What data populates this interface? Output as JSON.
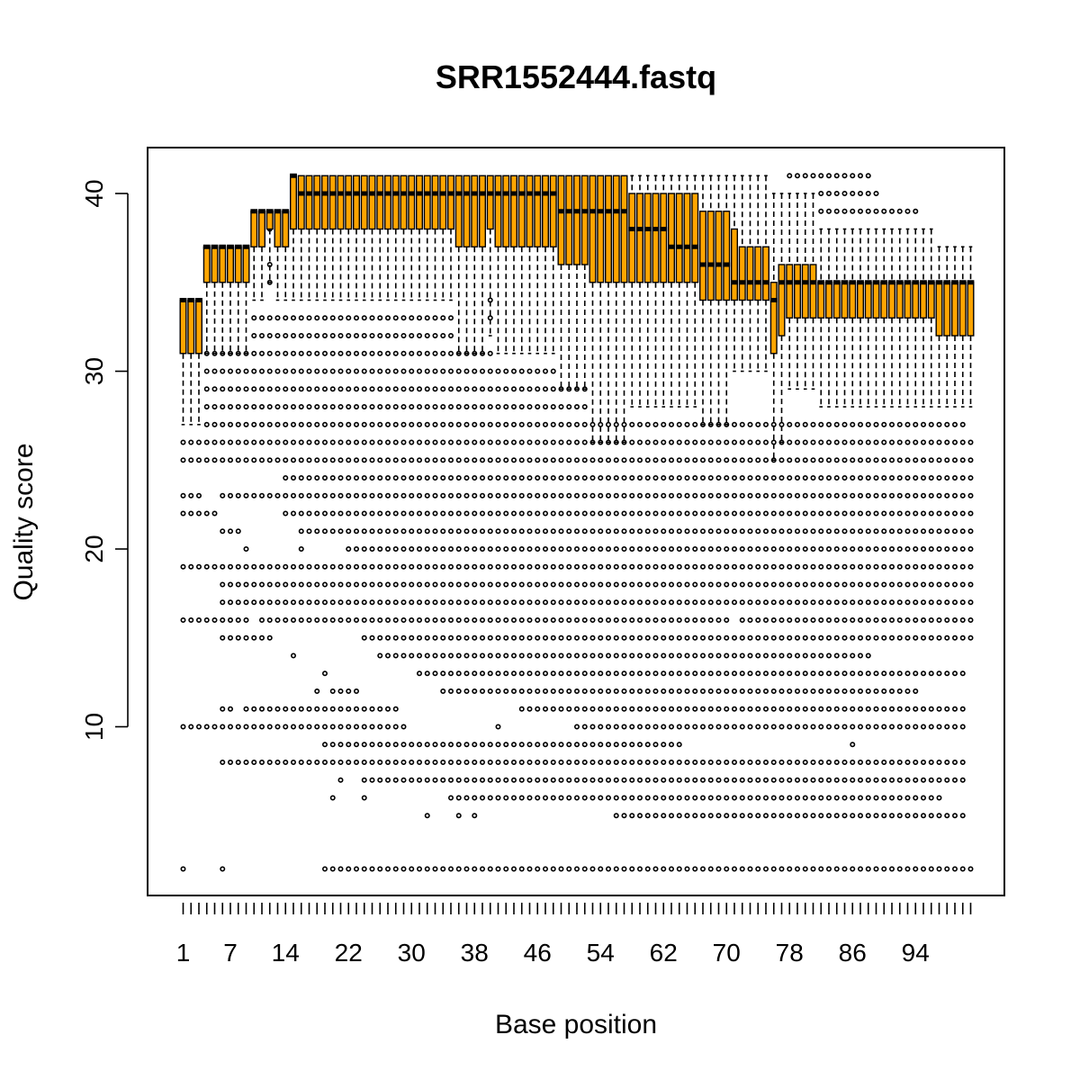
{
  "chart_data": {
    "type": "boxplot",
    "title": "SRR1552444.fastq",
    "xlabel": "Base position",
    "ylabel": "Quality score",
    "ylim": [
      0,
      42.5
    ],
    "grid": false,
    "legend": "none",
    "box_color": "#FFA500",
    "outline_color": "#000000",
    "x_tick_labels": [
      "1",
      "7",
      "14",
      "22",
      "30",
      "38",
      "46",
      "54",
      "62",
      "70",
      "78",
      "86",
      "94"
    ],
    "y_tick_labels": [
      "10",
      "20",
      "30",
      "40"
    ],
    "x_first": 1,
    "x_count": 101,
    "box_segments": [
      {
        "from": 1,
        "to": 3,
        "q1": 31,
        "median": 34,
        "q3": 34,
        "wlow": 27,
        "whigh": 34
      },
      {
        "from": 4,
        "to": 9,
        "q1": 35,
        "median": 37,
        "q3": 37,
        "wlow": 31,
        "whigh": 37
      },
      {
        "from": 10,
        "to": 11,
        "q1": 37,
        "median": 39,
        "q3": 39,
        "wlow": 34,
        "whigh": 39
      },
      {
        "from": 12,
        "to": 12,
        "q1": 38,
        "median": 39,
        "q3": 39,
        "wlow": 35,
        "whigh": 39
      },
      {
        "from": 13,
        "to": 14,
        "q1": 37,
        "median": 39,
        "q3": 39,
        "wlow": 34,
        "whigh": 39
      },
      {
        "from": 15,
        "to": 15,
        "q1": 38,
        "median": 41,
        "q3": 41,
        "wlow": 34,
        "whigh": 41
      },
      {
        "from": 16,
        "to": 35,
        "q1": 38,
        "median": 40,
        "q3": 41,
        "wlow": 34,
        "whigh": 41
      },
      {
        "from": 36,
        "to": 39,
        "q1": 37,
        "median": 40,
        "q3": 41,
        "wlow": 31,
        "whigh": 41
      },
      {
        "from": 40,
        "to": 40,
        "q1": 38,
        "median": 40,
        "q3": 41,
        "wlow": 32,
        "whigh": 41
      },
      {
        "from": 41,
        "to": 48,
        "q1": 37,
        "median": 40,
        "q3": 41,
        "wlow": 31,
        "whigh": 41
      },
      {
        "from": 49,
        "to": 52,
        "q1": 36,
        "median": 39,
        "q3": 41,
        "wlow": 29,
        "whigh": 41
      },
      {
        "from": 53,
        "to": 57,
        "q1": 35,
        "median": 39,
        "q3": 41,
        "wlow": 26,
        "whigh": 41
      },
      {
        "from": 58,
        "to": 62,
        "q1": 35,
        "median": 38,
        "q3": 40,
        "wlow": 28,
        "whigh": 41
      },
      {
        "from": 63,
        "to": 66,
        "q1": 35,
        "median": 37,
        "q3": 40,
        "wlow": 28,
        "whigh": 41
      },
      {
        "from": 67,
        "to": 70,
        "q1": 34,
        "median": 36,
        "q3": 39,
        "wlow": 27,
        "whigh": 41
      },
      {
        "from": 71,
        "to": 71,
        "q1": 34,
        "median": 35,
        "q3": 38,
        "wlow": 30,
        "whigh": 41
      },
      {
        "from": 72,
        "to": 75,
        "q1": 34,
        "median": 35,
        "q3": 37,
        "wlow": 30,
        "whigh": 41
      },
      {
        "from": 76,
        "to": 76,
        "q1": 31,
        "median": 34,
        "q3": 35,
        "wlow": 25,
        "whigh": 40
      },
      {
        "from": 77,
        "to": 77,
        "q1": 32,
        "median": 35,
        "q3": 36,
        "wlow": 26,
        "whigh": 40
      },
      {
        "from": 78,
        "to": 81,
        "q1": 33,
        "median": 35,
        "q3": 36,
        "wlow": 29,
        "whigh": 40
      },
      {
        "from": 82,
        "to": 96,
        "q1": 33,
        "median": 35,
        "q3": 35,
        "wlow": 28,
        "whigh": 38
      },
      {
        "from": 97,
        "to": 101,
        "q1": 32,
        "median": 35,
        "q3": 35,
        "wlow": 28,
        "whigh": 37
      }
    ],
    "outlier_rows": [
      {
        "q": 33,
        "from": 10,
        "to": 35
      },
      {
        "q": 32,
        "from": 10,
        "to": 35
      },
      {
        "q": 31,
        "from": 4,
        "to": 40
      },
      {
        "q": 30,
        "from": 4,
        "to": 48
      },
      {
        "q": 29,
        "from": 4,
        "to": 52
      },
      {
        "q": 28,
        "from": 4,
        "to": 52
      },
      {
        "q": 27,
        "from": 4,
        "to": 100
      },
      {
        "q": 26,
        "from": 1,
        "to": 101
      },
      {
        "q": 25,
        "from": 1,
        "to": 101
      },
      {
        "q": 24,
        "from": 14,
        "to": 101
      },
      {
        "q": 23,
        "from": 1,
        "to": 3
      },
      {
        "q": 23,
        "from": 6,
        "to": 101
      },
      {
        "q": 22,
        "from": 1,
        "to": 5
      },
      {
        "q": 22,
        "from": 14,
        "to": 101
      },
      {
        "q": 21,
        "from": 6,
        "to": 8
      },
      {
        "q": 21,
        "from": 16,
        "to": 101
      },
      {
        "q": 20,
        "from": 22,
        "to": 101
      },
      {
        "q": 19,
        "from": 1,
        "to": 101
      },
      {
        "q": 18,
        "from": 6,
        "to": 101
      },
      {
        "q": 17,
        "from": 6,
        "to": 101
      },
      {
        "q": 16,
        "from": 1,
        "to": 9
      },
      {
        "q": 16,
        "from": 11,
        "to": 70
      },
      {
        "q": 16,
        "from": 72,
        "to": 101
      },
      {
        "q": 15,
        "from": 6,
        "to": 12
      },
      {
        "q": 15,
        "from": 24,
        "to": 101
      },
      {
        "q": 14,
        "from": 26,
        "to": 88
      },
      {
        "q": 13,
        "from": 31,
        "to": 100
      },
      {
        "q": 12,
        "from": 20,
        "to": 23
      },
      {
        "q": 12,
        "from": 34,
        "to": 94
      },
      {
        "q": 11,
        "from": 6,
        "to": 7
      },
      {
        "q": 11,
        "from": 9,
        "to": 28
      },
      {
        "q": 11,
        "from": 44,
        "to": 100
      },
      {
        "q": 10,
        "from": 1,
        "to": 29
      },
      {
        "q": 10,
        "from": 51,
        "to": 100
      },
      {
        "q": 9,
        "from": 19,
        "to": 64
      },
      {
        "q": 8,
        "from": 6,
        "to": 100
      },
      {
        "q": 7,
        "from": 25,
        "to": 100
      },
      {
        "q": 6,
        "from": 35,
        "to": 97
      },
      {
        "q": 5,
        "from": 56,
        "to": 100
      },
      {
        "q": 2,
        "from": 19,
        "to": 101
      }
    ],
    "outlier_points": [
      {
        "x": 1,
        "q": 2
      },
      {
        "x": 6,
        "q": 2
      },
      {
        "x": 9,
        "q": 20
      },
      {
        "x": 16,
        "q": 20
      },
      {
        "x": 12,
        "q": 38
      },
      {
        "x": 12,
        "q": 36
      },
      {
        "x": 12,
        "q": 35
      },
      {
        "x": 40,
        "q": 34
      },
      {
        "x": 40,
        "q": 33
      },
      {
        "x": 15,
        "q": 14
      },
      {
        "x": 18,
        "q": 12
      },
      {
        "x": 19,
        "q": 13
      },
      {
        "x": 20,
        "q": 6
      },
      {
        "x": 21,
        "q": 7
      },
      {
        "x": 24,
        "q": 7
      },
      {
        "x": 24,
        "q": 6
      },
      {
        "x": 32,
        "q": 5
      },
      {
        "x": 36,
        "q": 5
      },
      {
        "x": 38,
        "q": 5
      },
      {
        "x": 41,
        "q": 10
      },
      {
        "x": 86,
        "q": 9
      }
    ],
    "top_outlier_rows": [
      {
        "q": 41,
        "from": 78,
        "to": 88
      },
      {
        "q": 40,
        "from": 82,
        "to": 89
      },
      {
        "q": 39,
        "from": 82,
        "to": 94
      }
    ]
  }
}
